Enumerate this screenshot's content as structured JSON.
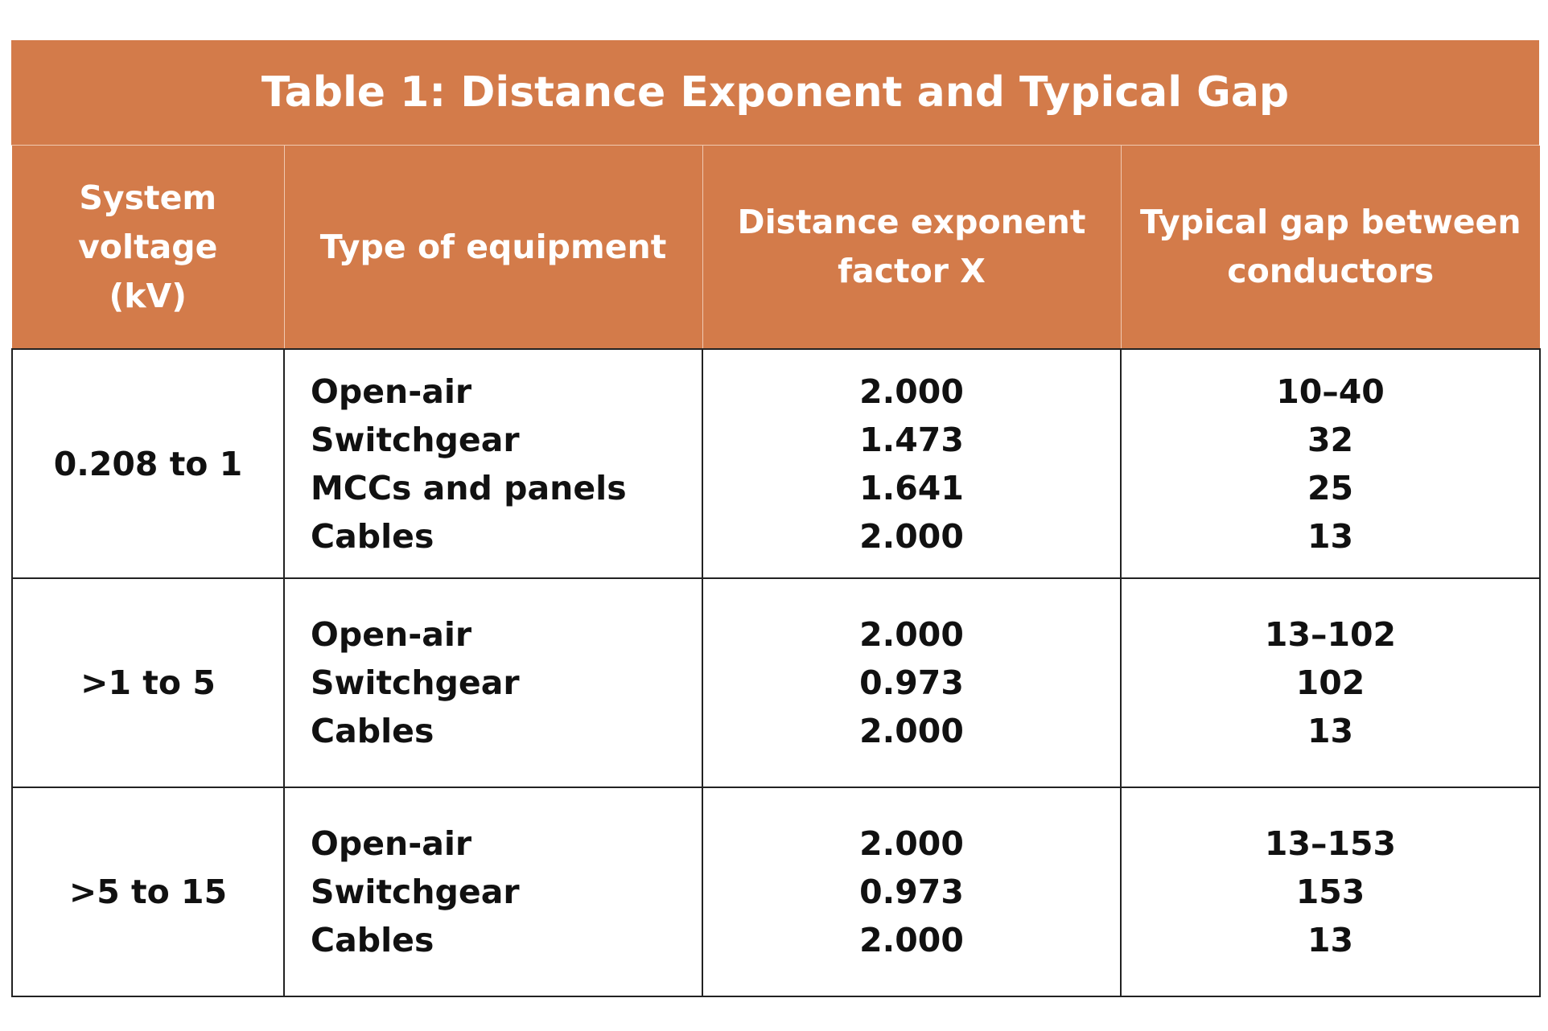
{
  "title": "Table 1: Distance Exponent and Typical Gap",
  "headers": {
    "voltage": [
      "System",
      "voltage",
      "(kV)"
    ],
    "equipment": "Type of equipment",
    "exponent": [
      "Distance exponent",
      "factor X"
    ],
    "gap": [
      "Typical gap between",
      "conductors"
    ]
  },
  "groups": [
    {
      "voltage": "0.208 to 1",
      "equipment": [
        "Open-air",
        "Switchgear",
        "MCCs and panels",
        "Cables"
      ],
      "exponent": [
        "2.000",
        "1.473",
        "1.641",
        "2.000"
      ],
      "gap": [
        "10–40",
        "32",
        "25",
        "13"
      ]
    },
    {
      "voltage": ">1 to 5",
      "equipment": [
        "Open-air",
        "Switchgear",
        "Cables"
      ],
      "exponent": [
        "2.000",
        "0.973",
        "2.000"
      ],
      "gap": [
        "13–102",
        "102",
        "13"
      ]
    },
    {
      "voltage": ">5 to 15",
      "equipment": [
        "Open-air",
        "Switchgear",
        "Cables"
      ],
      "exponent": [
        "2.000",
        "0.973",
        "2.000"
      ],
      "gap": [
        "13–153",
        "153",
        "13"
      ]
    }
  ],
  "colors": {
    "header_background": "#d37b4a",
    "header_text": "#ffffff",
    "border": "#222222"
  }
}
